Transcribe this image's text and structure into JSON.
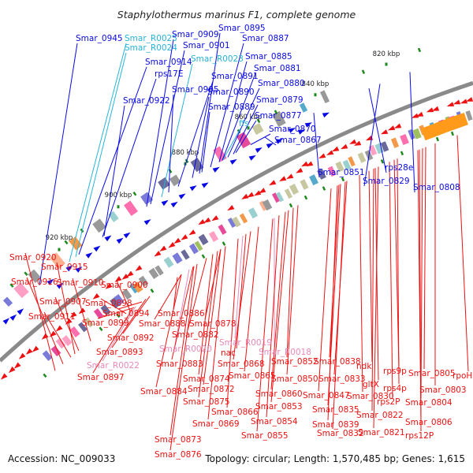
{
  "title": "Staphylothermus marinus F1, complete genome",
  "footer": {
    "accession": "Accession: NC_009033",
    "summary": "Topology: circular; Length: 1,570,485 bp; Genes: 1,615"
  },
  "colors": {
    "forward": "#0a0ae6",
    "reverse": "#ee1111",
    "rna_forward": "#27b4d8",
    "rna_reverse": "#e889b8",
    "backbone": "#8a8a8a",
    "tick": "#1d8a1d"
  },
  "ticks": [
    "920 kbp",
    "900 kbp",
    "880 kbp",
    "860 kbp",
    "840 kbp",
    "820 kbp"
  ],
  "labels_top": [
    {
      "text": "Smar_0945",
      "type": "forward"
    },
    {
      "text": "Smar_R0025",
      "type": "rna_forward"
    },
    {
      "text": "Smar_R0024",
      "type": "rna_forward"
    },
    {
      "text": "Smar_0914",
      "type": "forward"
    },
    {
      "text": "rps17E",
      "type": "forward"
    },
    {
      "text": "Smar_0922",
      "type": "forward"
    },
    {
      "text": "Smar_0909",
      "type": "forward"
    },
    {
      "text": "Smar_0901",
      "type": "forward"
    },
    {
      "text": "Smar_R0023",
      "type": "rna_forward"
    },
    {
      "text": "Smar_0905",
      "type": "forward"
    },
    {
      "text": "Smar_0895",
      "type": "forward"
    },
    {
      "text": "Smar_0887",
      "type": "forward"
    },
    {
      "text": "Smar_0885",
      "type": "forward"
    },
    {
      "text": "Smar_0881",
      "type": "forward"
    },
    {
      "text": "Smar_0891",
      "type": "forward"
    },
    {
      "text": "Smar_0880",
      "type": "forward"
    },
    {
      "text": "Smar_0890",
      "type": "forward"
    },
    {
      "text": "Smar_0879",
      "type": "forward"
    },
    {
      "text": "Smar_0889",
      "type": "forward"
    },
    {
      "text": "Smar_0877",
      "type": "forward"
    },
    {
      "text": "ffs",
      "type": "rna_forward"
    },
    {
      "text": "Smar_0870",
      "type": "forward"
    },
    {
      "text": "Smar_0867",
      "type": "forward"
    },
    {
      "text": "Smar_0851",
      "type": "forward"
    },
    {
      "text": "rps28e",
      "type": "forward"
    },
    {
      "text": "Smar_0829",
      "type": "forward"
    },
    {
      "text": "Smar_0808",
      "type": "forward"
    }
  ],
  "labels_bottom": [
    {
      "text": "Smar_0920",
      "type": "reverse"
    },
    {
      "text": "Smar_0915",
      "type": "reverse"
    },
    {
      "text": "Smar_0916",
      "type": "reverse"
    },
    {
      "text": "Smar_0910",
      "type": "reverse"
    },
    {
      "text": "Smar_0900",
      "type": "reverse"
    },
    {
      "text": "Smar_0907",
      "type": "reverse"
    },
    {
      "text": "Smar_0898",
      "type": "reverse"
    },
    {
      "text": "Smar_0911",
      "type": "reverse"
    },
    {
      "text": "Smar_0894",
      "type": "reverse"
    },
    {
      "text": "Smar_0886",
      "type": "reverse"
    },
    {
      "text": "Smar_0899",
      "type": "reverse"
    },
    {
      "text": "Smar_0888",
      "type": "reverse"
    },
    {
      "text": "Smar_0878",
      "type": "reverse"
    },
    {
      "text": "Smar_0882",
      "type": "reverse"
    },
    {
      "text": "Smar_0892",
      "type": "reverse"
    },
    {
      "text": "Smar_R0019",
      "type": "rna_reverse"
    },
    {
      "text": "Smar_R0020",
      "type": "rna_reverse"
    },
    {
      "text": "Smar_R0018",
      "type": "rna_reverse"
    },
    {
      "text": "Smar_0893",
      "type": "reverse"
    },
    {
      "text": "nac",
      "type": "reverse"
    },
    {
      "text": "Smar_0883",
      "type": "reverse"
    },
    {
      "text": "Smar_0868",
      "type": "reverse"
    },
    {
      "text": "Smar_0852",
      "type": "reverse"
    },
    {
      "text": "Smar_0838",
      "type": "reverse"
    },
    {
      "text": "Smar_R0022",
      "type": "rna_reverse"
    },
    {
      "text": "ndk",
      "type": "reverse"
    },
    {
      "text": "Smar_0865",
      "type": "reverse"
    },
    {
      "text": "Smar_0850",
      "type": "reverse"
    },
    {
      "text": "Smar_0833",
      "type": "reverse"
    },
    {
      "text": "rps9p",
      "type": "reverse"
    },
    {
      "text": "Smar_0897",
      "type": "reverse"
    },
    {
      "text": "Smar_0874",
      "type": "reverse"
    },
    {
      "text": "Smar_0805",
      "type": "reverse"
    },
    {
      "text": "rpoH",
      "type": "reverse"
    },
    {
      "text": "Smar_0872",
      "type": "reverse"
    },
    {
      "text": "gltX",
      "type": "reverse"
    },
    {
      "text": "rps4p",
      "type": "reverse"
    },
    {
      "text": "Smar_0884",
      "type": "reverse"
    },
    {
      "text": "Smar_0860",
      "type": "reverse"
    },
    {
      "text": "Smar_0847",
      "type": "reverse"
    },
    {
      "text": "Smar_0830",
      "type": "reverse"
    },
    {
      "text": "rps2P",
      "type": "reverse"
    },
    {
      "text": "Smar_0803",
      "type": "reverse"
    },
    {
      "text": "Smar_0875",
      "type": "reverse"
    },
    {
      "text": "Smar_0853",
      "type": "reverse"
    },
    {
      "text": "Smar_0835",
      "type": "reverse"
    },
    {
      "text": "Smar_0804",
      "type": "reverse"
    },
    {
      "text": "Smar_0866",
      "type": "reverse"
    },
    {
      "text": "Smar_0822",
      "type": "reverse"
    },
    {
      "text": "Smar_0854",
      "type": "reverse"
    },
    {
      "text": "Smar_0839",
      "type": "reverse"
    },
    {
      "text": "Smar_0869",
      "type": "reverse"
    },
    {
      "text": "Smar_0806",
      "type": "reverse"
    },
    {
      "text": "Smar_0821",
      "type": "reverse"
    },
    {
      "text": "Smar_0855",
      "type": "reverse"
    },
    {
      "text": "Smar_0832",
      "type": "reverse"
    },
    {
      "text": "rps12P",
      "type": "reverse"
    },
    {
      "text": "Smar_0873",
      "type": "reverse"
    },
    {
      "text": "Smar_0876",
      "type": "reverse"
    }
  ]
}
